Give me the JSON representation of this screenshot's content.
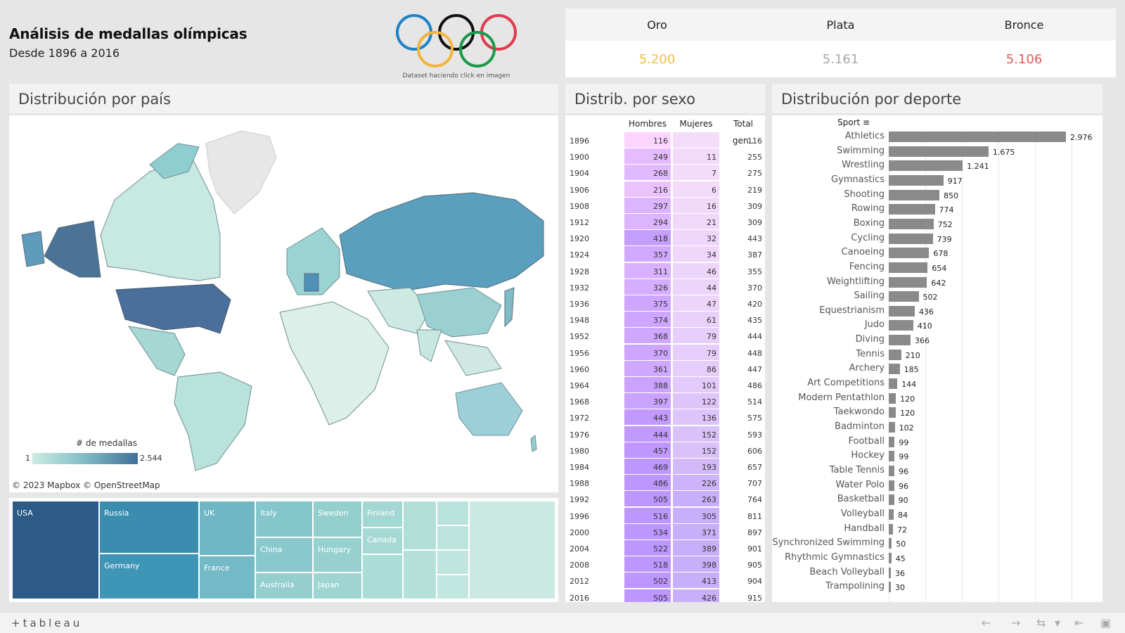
{
  "header": {
    "title": "Análisis de medallas olímpicas",
    "subtitle": "Desde 1896 a 2016",
    "logo_caption": "Dataset haciendo click en imagen"
  },
  "kpis": [
    {
      "label": "Oro",
      "value": "5.200",
      "color": "#f0c040"
    },
    {
      "label": "Plata",
      "value": "5.161",
      "color": "#a8a8a8"
    },
    {
      "label": "Bronce",
      "value": "5.106",
      "color": "#e05a5a"
    }
  ],
  "map_panel": {
    "title": "Distribución por país",
    "legend_title": "# de medallas",
    "legend_min": "1",
    "legend_max": "2.544",
    "attribution": "© 2023 Mapbox  © OpenStreetMap"
  },
  "treemap": {
    "labels": [
      "USA",
      "Russia",
      "Germany",
      "UK",
      "France",
      "Italy",
      "China",
      "Australia",
      "Sweden",
      "Hungary",
      "Japan",
      "Finland",
      "Canada"
    ]
  },
  "sex_panel": {
    "title": "Distrib. por sexo",
    "columns": [
      "Hombres",
      "Mujeres",
      "Total gen.."
    ],
    "rows": [
      {
        "year": "1896",
        "h": 116,
        "m": null,
        "t": 116
      },
      {
        "year": "1900",
        "h": 249,
        "m": 11,
        "t": 255
      },
      {
        "year": "1904",
        "h": 268,
        "m": 7,
        "t": 275
      },
      {
        "year": "1906",
        "h": 216,
        "m": 6,
        "t": 219
      },
      {
        "year": "1908",
        "h": 297,
        "m": 16,
        "t": 309
      },
      {
        "year": "1912",
        "h": 294,
        "m": 21,
        "t": 309
      },
      {
        "year": "1920",
        "h": 418,
        "m": 32,
        "t": 443
      },
      {
        "year": "1924",
        "h": 357,
        "m": 34,
        "t": 387
      },
      {
        "year": "1928",
        "h": 311,
        "m": 46,
        "t": 355
      },
      {
        "year": "1932",
        "h": 326,
        "m": 44,
        "t": 370
      },
      {
        "year": "1936",
        "h": 375,
        "m": 47,
        "t": 420
      },
      {
        "year": "1948",
        "h": 374,
        "m": 61,
        "t": 435
      },
      {
        "year": "1952",
        "h": 368,
        "m": 79,
        "t": 444
      },
      {
        "year": "1956",
        "h": 370,
        "m": 79,
        "t": 448
      },
      {
        "year": "1960",
        "h": 361,
        "m": 86,
        "t": 447
      },
      {
        "year": "1964",
        "h": 388,
        "m": 101,
        "t": 486
      },
      {
        "year": "1968",
        "h": 397,
        "m": 122,
        "t": 514
      },
      {
        "year": "1972",
        "h": 443,
        "m": 136,
        "t": 575
      },
      {
        "year": "1976",
        "h": 444,
        "m": 152,
        "t": 593
      },
      {
        "year": "1980",
        "h": 457,
        "m": 152,
        "t": 606
      },
      {
        "year": "1984",
        "h": 469,
        "m": 193,
        "t": 657
      },
      {
        "year": "1988",
        "h": 486,
        "m": 226,
        "t": 707
      },
      {
        "year": "1992",
        "h": 505,
        "m": 263,
        "t": 764
      },
      {
        "year": "1996",
        "h": 516,
        "m": 305,
        "t": 811
      },
      {
        "year": "2000",
        "h": 534,
        "m": 371,
        "t": 897
      },
      {
        "year": "2004",
        "h": 522,
        "m": 389,
        "t": 901
      },
      {
        "year": "2008",
        "h": 518,
        "m": 398,
        "t": 905
      },
      {
        "year": "2012",
        "h": 502,
        "m": 413,
        "t": 904
      },
      {
        "year": "2016",
        "h": 505,
        "m": 426,
        "t": 915
      }
    ]
  },
  "sport_panel": {
    "title": "Distribución por deporte",
    "header": "Sport",
    "items": [
      {
        "name": "Athletics",
        "value": 2976,
        "label": "2.976"
      },
      {
        "name": "Swimming",
        "value": 1675,
        "label": "1.675"
      },
      {
        "name": "Wrestling",
        "value": 1241,
        "label": "1.241"
      },
      {
        "name": "Gymnastics",
        "value": 917,
        "label": "917"
      },
      {
        "name": "Shooting",
        "value": 850,
        "label": "850"
      },
      {
        "name": "Rowing",
        "value": 774,
        "label": "774"
      },
      {
        "name": "Boxing",
        "value": 752,
        "label": "752"
      },
      {
        "name": "Cycling",
        "value": 739,
        "label": "739"
      },
      {
        "name": "Canoeing",
        "value": 678,
        "label": "678"
      },
      {
        "name": "Fencing",
        "value": 654,
        "label": "654"
      },
      {
        "name": "Weightlifting",
        "value": 642,
        "label": "642"
      },
      {
        "name": "Sailing",
        "value": 502,
        "label": "502"
      },
      {
        "name": "Equestrianism",
        "value": 436,
        "label": "436"
      },
      {
        "name": "Judo",
        "value": 410,
        "label": "410"
      },
      {
        "name": "Diving",
        "value": 366,
        "label": "366"
      },
      {
        "name": "Tennis",
        "value": 210,
        "label": "210"
      },
      {
        "name": "Archery",
        "value": 185,
        "label": "185"
      },
      {
        "name": "Art Competitions",
        "value": 144,
        "label": "144"
      },
      {
        "name": "Modern Pentathlon",
        "value": 120,
        "label": "120"
      },
      {
        "name": "Taekwondo",
        "value": 120,
        "label": "120"
      },
      {
        "name": "Badminton",
        "value": 102,
        "label": "102"
      },
      {
        "name": "Football",
        "value": 99,
        "label": "99"
      },
      {
        "name": "Hockey",
        "value": 99,
        "label": "99"
      },
      {
        "name": "Table Tennis",
        "value": 96,
        "label": "96"
      },
      {
        "name": "Water Polo",
        "value": 96,
        "label": "96"
      },
      {
        "name": "Basketball",
        "value": 90,
        "label": "90"
      },
      {
        "name": "Volleyball",
        "value": 84,
        "label": "84"
      },
      {
        "name": "Handball",
        "value": 72,
        "label": "72"
      },
      {
        "name": "Synchronized Swimming",
        "value": 50,
        "label": "50"
      },
      {
        "name": "Rhythmic Gymnastics",
        "value": 45,
        "label": "45"
      },
      {
        "name": "Beach Volleyball",
        "value": 36,
        "label": "36"
      },
      {
        "name": "Trampolining",
        "value": 30,
        "label": "30"
      }
    ]
  },
  "footer": {
    "brand": "+tableau"
  }
}
